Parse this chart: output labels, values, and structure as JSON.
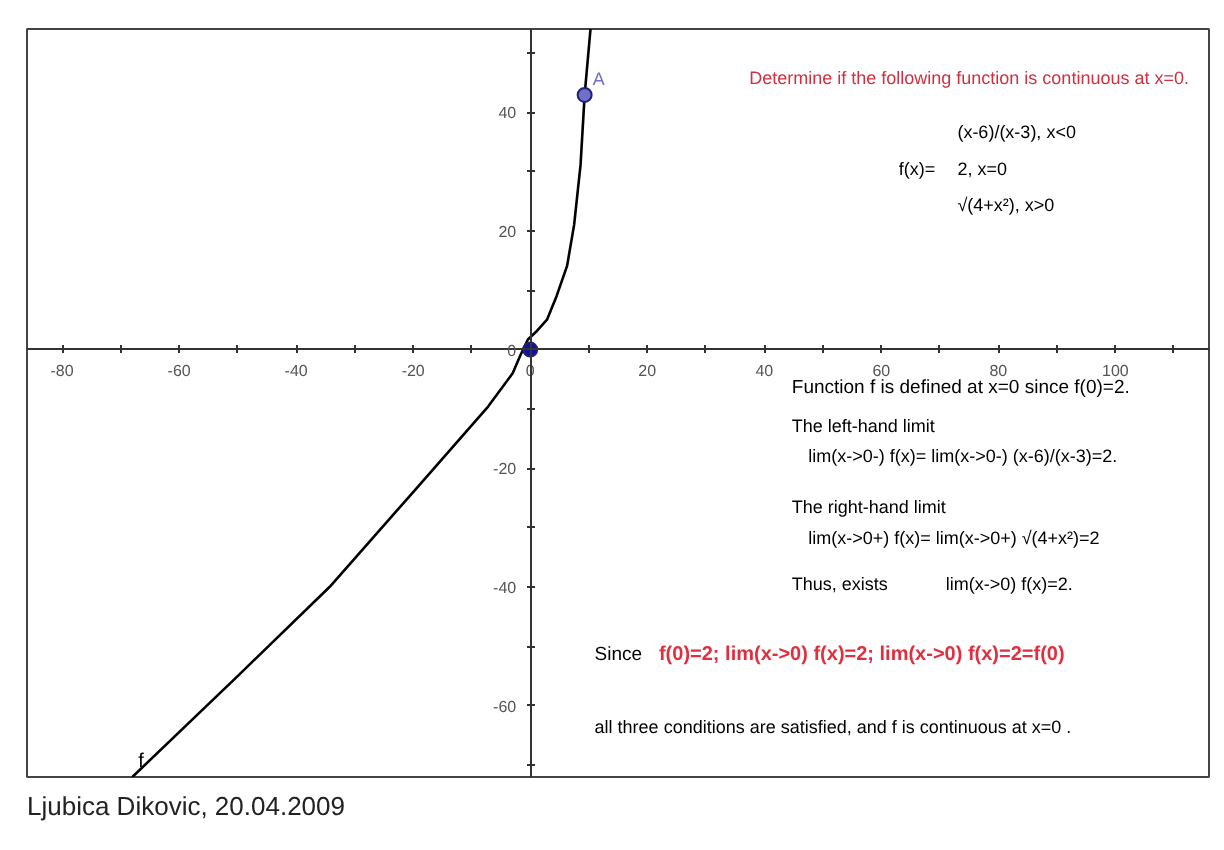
{
  "chart_data": {
    "type": "line",
    "xlim": [
      -86,
      116
    ],
    "ylim": [
      -72,
      54
    ],
    "xticks": [
      -80,
      {
        "value": -70,
        "label": null
      },
      -60,
      {
        "value": -50,
        "label": null
      },
      -40,
      {
        "value": -30,
        "label": null
      },
      -20,
      {
        "value": -10,
        "label": null
      },
      0,
      {
        "value": 10,
        "label": null
      },
      20,
      {
        "value": 30,
        "label": null
      },
      40,
      {
        "value": 50,
        "label": null
      },
      60,
      {
        "value": 70,
        "label": null
      },
      80,
      {
        "value": 90,
        "label": null
      },
      100,
      {
        "value": 110,
        "label": null
      }
    ],
    "yticks": [
      {
        "value": -70,
        "label": null
      },
      -60,
      {
        "value": -50,
        "label": null
      },
      -40,
      {
        "value": -30,
        "label": null
      },
      -20,
      {
        "value": -10,
        "label": null
      },
      0,
      {
        "value": 10,
        "label": null
      },
      20,
      {
        "value": 30,
        "label": null
      },
      40,
      {
        "value": 50,
        "label": null
      }
    ],
    "series": [
      {
        "name": "f",
        "color": "#000000",
        "x": [
          -68,
          -50,
          -34.3,
          -20,
          -7.2,
          -3,
          -1.7,
          -0.4,
          1,
          2.9,
          4.5,
          6.3,
          7.5,
          8.6,
          9.3,
          10.3
        ],
        "values": [
          -72,
          -55,
          -40,
          -24,
          -9.6,
          -4,
          -1,
          1.7,
          3,
          5.1,
          9,
          14.1,
          21,
          31.1,
          42.9,
          54
        ]
      },
      {
        "type": "scatter",
        "marker": "circle",
        "colors": [
          "#1010a0",
          "#7070c8"
        ],
        "x": [
          0,
          9.3
        ],
        "values": [
          0,
          42.9
        ]
      }
    ],
    "annotations": [
      "Determine if the following function is continuous at x=0.",
      "f(x)=",
      "(x-6)/(x-3),  x<0",
      "2,  x=0",
      "√(4+x²),  x>0",
      "Function f is defined at x=0 since f(0)=2.",
      "The left-hand limit",
      "lim(x->0-) f(x)= lim(x->0-) (x-6)/(x-3)=2.",
      "The right-hand limit",
      "lim(x->0+) f(x)= lim(x->0+) √(4+x²)=2",
      "Thus, exists",
      "lim(x->0) f(x)=2.",
      "Since",
      "f(0)=2;  lim(x->0) f(x)=2;  lim(x->0) f(x)=2=f(0)",
      "all three conditions are satisfied, and f is continuous at x=0 .",
      "Ljubica Dikovic, 20.04.2009",
      {
        "text": "A",
        "x": 9.3,
        "y": 42.9
      }
    ]
  }
}
